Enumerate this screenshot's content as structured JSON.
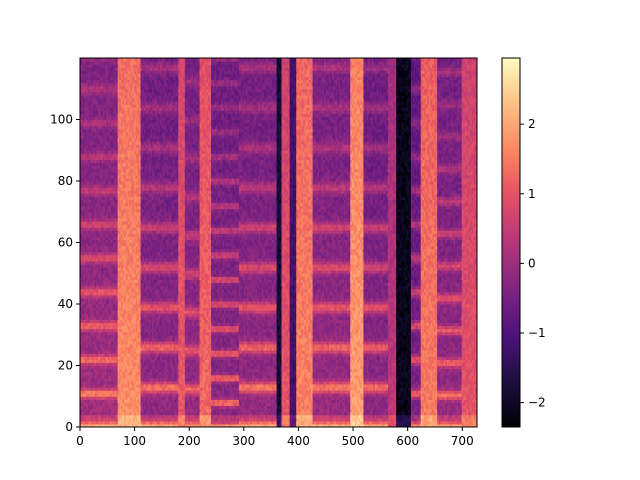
{
  "chart_data": {
    "type": "heatmap",
    "title": "",
    "xlabel": "",
    "ylabel": "",
    "x_range": [
      0,
      727
    ],
    "y_range": [
      0,
      120
    ],
    "x_ticks": [
      0,
      100,
      200,
      300,
      400,
      500,
      600,
      700
    ],
    "y_ticks": [
      0,
      20,
      40,
      60,
      80,
      100
    ],
    "colormap": "magma",
    "colorbar": {
      "range": [
        -2.35,
        2.95
      ],
      "ticks": [
        -2,
        -1,
        0,
        1,
        2
      ],
      "tick_labels": [
        "−2",
        "−1",
        "0",
        "1",
        "2"
      ]
    },
    "segments": [
      {
        "type": "harmonic",
        "x": [
          0,
          70
        ],
        "f0": 11.0,
        "base": 0.05,
        "peak": 1.75
      },
      {
        "type": "broadband",
        "x": [
          70,
          110
        ],
        "level": 1.7
      },
      {
        "type": "harmonic",
        "x": [
          110,
          180
        ],
        "f0": 13.0,
        "base": -0.15,
        "peak": 1.65
      },
      {
        "type": "broadband",
        "x": [
          180,
          192
        ],
        "level": 1.1
      },
      {
        "type": "harmonic",
        "x": [
          192,
          218
        ],
        "f0": 12.5,
        "base": -0.1,
        "peak": 1.4
      },
      {
        "type": "broadband",
        "x": [
          218,
          240
        ],
        "level": 1.3
      },
      {
        "type": "harmonic",
        "x": [
          240,
          290
        ],
        "f0": 8.0,
        "base": -0.2,
        "peak": 1.6
      },
      {
        "type": "harmonic",
        "x": [
          290,
          360
        ],
        "f0": 13.0,
        "base": -0.1,
        "peak": 1.7
      },
      {
        "type": "dark",
        "x": [
          360,
          368
        ],
        "level": -1.8
      },
      {
        "type": "broadband",
        "x": [
          368,
          385
        ],
        "level": 1.0
      },
      {
        "type": "dark",
        "x": [
          385,
          395
        ],
        "level": -1.2
      },
      {
        "type": "broadband",
        "x": [
          395,
          425
        ],
        "level": 1.6
      },
      {
        "type": "harmonic",
        "x": [
          425,
          495
        ],
        "f0": 13.0,
        "base": -0.05,
        "peak": 1.7
      },
      {
        "type": "broadband",
        "x": [
          495,
          520
        ],
        "level": 1.9
      },
      {
        "type": "harmonic",
        "x": [
          520,
          565
        ],
        "f0": 13.0,
        "base": -0.2,
        "peak": 1.6
      },
      {
        "type": "broadband",
        "x": [
          565,
          580
        ],
        "level": 0.4
      },
      {
        "type": "dark",
        "x": [
          580,
          605
        ],
        "level": -2.1
      },
      {
        "type": "harmonic",
        "x": [
          605,
          625
        ],
        "f0": 11.0,
        "base": -0.4,
        "peak": 1.3
      },
      {
        "type": "broadband",
        "x": [
          625,
          655
        ],
        "level": 1.5
      },
      {
        "type": "harmonic",
        "x": [
          655,
          700
        ],
        "f0": 10.5,
        "base": -0.1,
        "peak": 1.6
      },
      {
        "type": "broadband",
        "x": [
          700,
          727
        ],
        "level": 1.0
      }
    ]
  }
}
